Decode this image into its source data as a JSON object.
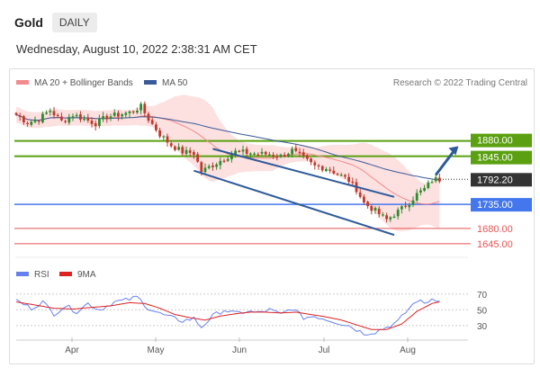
{
  "header": {
    "symbol": "Gold",
    "timeframe": "DAILY"
  },
  "datetime": "Wednesday, August 10, 2022 2:38:31 AM CET",
  "legend_main": {
    "bb": "MA 20 + Bollinger Bands",
    "ma50": "MA 50"
  },
  "credit": "Research © 2022 Trading Central",
  "legend_rsi": {
    "rsi": "RSI",
    "ma9": "9MA"
  },
  "colors": {
    "bull": "#2e8b2e",
    "bear": "#c0392b",
    "ma20": "#f28c8c",
    "band": "#fde0e0",
    "ma50": "#3a5a99",
    "green_level": "#5aa010",
    "blue_level": "#4477ee",
    "red_level": "#e55555",
    "last_price": "#333333",
    "rsi": "#6680ee",
    "rsi_ma": "#dd2222",
    "trend": "#2e5a9a"
  },
  "chart_data": [
    {
      "type": "candlestick",
      "title": "Gold",
      "timeframe": "DAILY",
      "x_labels": [
        "Apr",
        "May",
        "Jun",
        "Jul",
        "Aug"
      ],
      "price_range": [
        1620,
        1980
      ],
      "levels": [
        {
          "value": 1880.0,
          "label": "1880.00",
          "kind": "resistance"
        },
        {
          "value": 1845.0,
          "label": "1845.00",
          "kind": "resistance"
        },
        {
          "value": 1792.2,
          "label": "1792.20",
          "kind": "last"
        },
        {
          "value": 1735.0,
          "label": "1735.00",
          "kind": "pivot"
        },
        {
          "value": 1680.0,
          "label": "1680.00",
          "kind": "support"
        },
        {
          "value": 1645.0,
          "label": "1645.00",
          "kind": "support"
        }
      ],
      "price_path": [
        [
          0,
          1940
        ],
        [
          3,
          1922
        ],
        [
          6,
          1930
        ],
        [
          9,
          1950
        ],
        [
          12,
          1925
        ],
        [
          15,
          1940
        ],
        [
          18,
          1930
        ],
        [
          21,
          1920
        ],
        [
          24,
          1935
        ],
        [
          27,
          1940
        ],
        [
          30,
          1945
        ],
        [
          33,
          1958
        ],
        [
          35,
          1930
        ],
        [
          38,
          1895
        ],
        [
          41,
          1870
        ],
        [
          44,
          1855
        ],
        [
          47,
          1852
        ],
        [
          49,
          1810
        ],
        [
          52,
          1825
        ],
        [
          55,
          1840
        ],
        [
          58,
          1855
        ],
        [
          61,
          1853
        ],
        [
          64,
          1850
        ],
        [
          67,
          1850
        ],
        [
          70,
          1845
        ],
        [
          73,
          1858
        ],
        [
          76,
          1840
        ],
        [
          79,
          1822
        ],
        [
          82,
          1818
        ],
        [
          85,
          1805
        ],
        [
          88,
          1790
        ],
        [
          90,
          1770
        ],
        [
          92,
          1738
        ],
        [
          95,
          1720
        ],
        [
          98,
          1700
        ],
        [
          100,
          1712
        ],
        [
          102,
          1725
        ],
        [
          104,
          1740
        ],
        [
          106,
          1758
        ],
        [
          108,
          1770
        ],
        [
          110,
          1790
        ],
        [
          111,
          1792
        ]
      ],
      "trend_lines": [
        {
          "from": [
            47,
            1812
          ],
          "to": [
            100,
            1665
          ]
        },
        {
          "from": [
            52,
            1862
          ],
          "to": [
            100,
            1752
          ]
        }
      ],
      "projection": {
        "from": [
          111,
          1802
        ],
        "to": [
          117,
          1868
        ]
      }
    },
    {
      "type": "line",
      "title": "RSI",
      "y_ticks": [
        70,
        50,
        30
      ],
      "y_range": [
        15,
        80
      ],
      "series": [
        {
          "name": "RSI",
          "points": [
            [
              0,
              62
            ],
            [
              4,
              52
            ],
            [
              7,
              60
            ],
            [
              10,
              45
            ],
            [
              13,
              55
            ],
            [
              16,
              48
            ],
            [
              19,
              58
            ],
            [
              22,
              50
            ],
            [
              26,
              60
            ],
            [
              29,
              62
            ],
            [
              32,
              66
            ],
            [
              35,
              52
            ],
            [
              38,
              45
            ],
            [
              41,
              40
            ],
            [
              44,
              36
            ],
            [
              47,
              39
            ],
            [
              49,
              28
            ],
            [
              52,
              42
            ],
            [
              55,
              50
            ],
            [
              58,
              45
            ],
            [
              61,
              48
            ],
            [
              64,
              46
            ],
            [
              67,
              50
            ],
            [
              70,
              44
            ],
            [
              73,
              52
            ],
            [
              76,
              40
            ],
            [
              79,
              42
            ],
            [
              82,
              38
            ],
            [
              85,
              34
            ],
            [
              88,
              30
            ],
            [
              90,
              25
            ],
            [
              92,
              20
            ],
            [
              95,
              22
            ],
            [
              98,
              28
            ],
            [
              101,
              35
            ],
            [
              104,
              52
            ],
            [
              106,
              62
            ],
            [
              108,
              58
            ],
            [
              110,
              64
            ],
            [
              112,
              63
            ]
          ]
        },
        {
          "name": "9MA",
          "points": [
            [
              0,
              60
            ],
            [
              5,
              56
            ],
            [
              10,
              52
            ],
            [
              15,
              51
            ],
            [
              20,
              53
            ],
            [
              25,
              55
            ],
            [
              30,
              59
            ],
            [
              34,
              58
            ],
            [
              38,
              52
            ],
            [
              42,
              44
            ],
            [
              46,
              40
            ],
            [
              50,
              37
            ],
            [
              54,
              42
            ],
            [
              58,
              45
            ],
            [
              62,
              47
            ],
            [
              66,
              47
            ],
            [
              70,
              46
            ],
            [
              74,
              47
            ],
            [
              78,
              44
            ],
            [
              82,
              41
            ],
            [
              86,
              37
            ],
            [
              90,
              31
            ],
            [
              94,
              25
            ],
            [
              98,
              25
            ],
            [
              102,
              32
            ],
            [
              106,
              48
            ],
            [
              110,
              58
            ],
            [
              112,
              60
            ]
          ]
        }
      ]
    }
  ]
}
